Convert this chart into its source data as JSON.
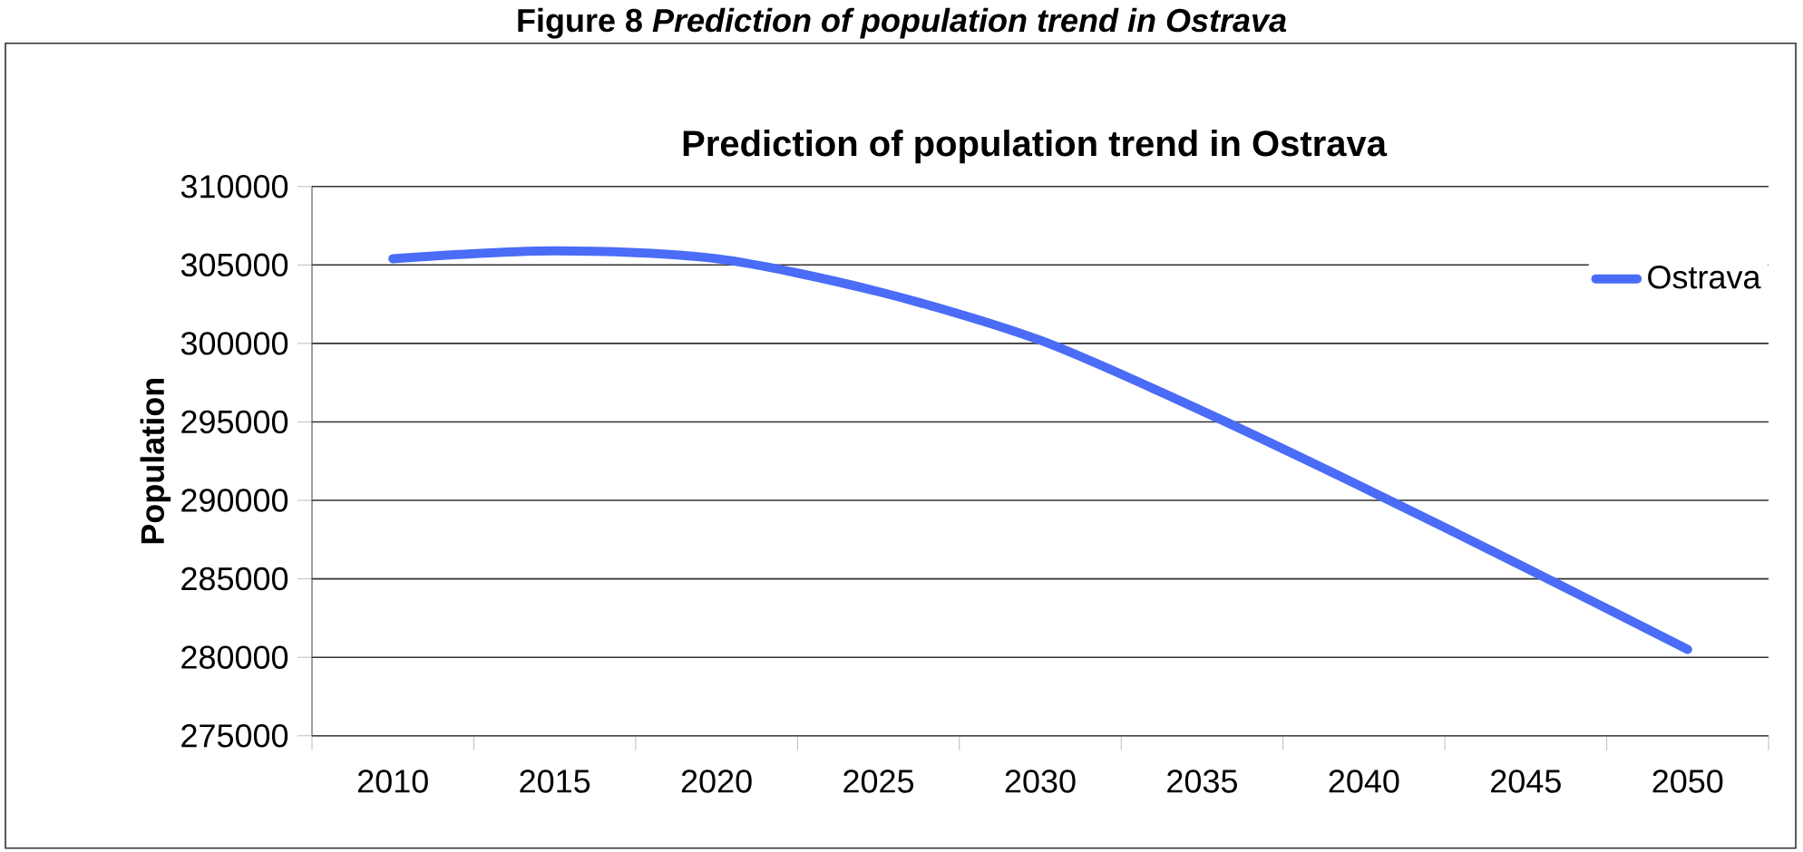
{
  "chart_data": {
    "type": "line",
    "title": "Figure 8 *Prediction of population trend in Ostrava*",
    "subtitle": "Prediction of population trend in Ostrava",
    "ylabel": "Population",
    "categories": [
      "2010",
      "2015",
      "2020",
      "2025",
      "2030",
      "2035",
      "2040",
      "2045",
      "2050"
    ],
    "series": [
      {
        "name": "Ostrava",
        "color": "#4a6cf7",
        "values": [
          305400,
          305900,
          305400,
          303300,
          300200,
          295700,
          290800,
          285700,
          280500
        ]
      }
    ],
    "ylim": [
      275000,
      310000
    ],
    "yticks": [
      275000,
      280000,
      285000,
      290000,
      295000,
      300000,
      305000,
      310000
    ],
    "grid": "y",
    "legend": "top right",
    "marker": "none",
    "line_style": "solid"
  }
}
